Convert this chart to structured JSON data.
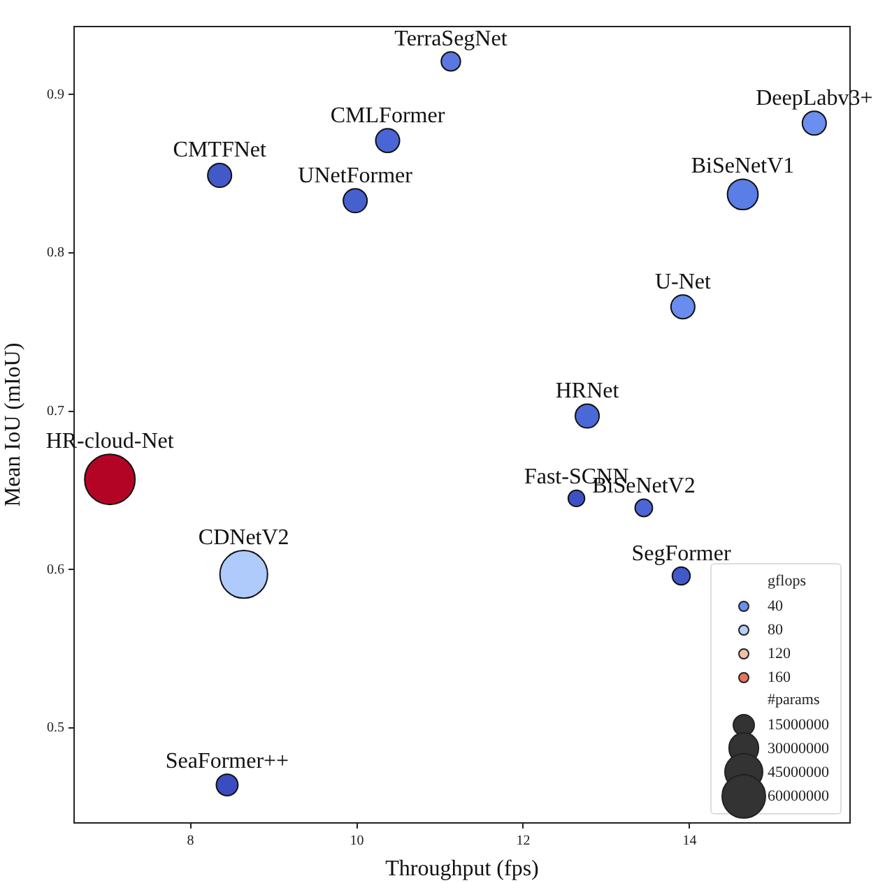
{
  "chart_data": {
    "type": "bubble",
    "xlabel": "Throughput (fps)",
    "ylabel": "Mean IoU (mIoU)",
    "xlim": [
      6.6,
      15.93
    ],
    "ylim": [
      0.44,
      0.943
    ],
    "xticks": [
      8,
      10,
      12,
      14
    ],
    "yticks": [
      0.5,
      0.6,
      0.7,
      0.8,
      0.9
    ],
    "grid": false,
    "legend": "bottom right",
    "legend_title": "gflops",
    "annotations": [
      "#params"
    ],
    "size_legend": [
      15000000,
      30000000,
      45000000,
      60000000
    ],
    "series": [
      {
        "name": "TerraSegNet",
        "color": "#5a78e0",
        "x": [
          11.13
        ],
        "values": [
          0.921
        ],
        "sizes": [
          11000000
        ]
      },
      {
        "name": "DeepLabv3+",
        "color": "#6b8ef0",
        "x": [
          15.5
        ],
        "values": [
          0.882
        ],
        "sizes": [
          17000000
        ]
      },
      {
        "name": "CMLFormer",
        "color": "#4a66d6",
        "x": [
          10.37
        ],
        "values": [
          0.871
        ],
        "sizes": [
          17000000
        ]
      },
      {
        "name": "CMTFNet",
        "color": "#4259c9",
        "x": [
          8.35
        ],
        "values": [
          0.849
        ],
        "sizes": [
          17000000
        ]
      },
      {
        "name": "BiSeNetV1",
        "color": "#5a7de6",
        "x": [
          14.64
        ],
        "values": [
          0.837
        ],
        "sizes": [
          28000000
        ]
      },
      {
        "name": "UNetFormer",
        "color": "#4660d0",
        "x": [
          9.98
        ],
        "values": [
          0.833
        ],
        "sizes": [
          17000000
        ]
      },
      {
        "name": "U-Net",
        "color": "#6a8cef",
        "x": [
          13.92
        ],
        "values": [
          0.766
        ],
        "sizes": [
          17000000
        ]
      },
      {
        "name": "HRNet",
        "color": "#4b68d7",
        "x": [
          12.77
        ],
        "values": [
          0.697
        ],
        "sizes": [
          17000000
        ]
      },
      {
        "name": "HR-cloud-Net",
        "color": "#b40426",
        "x": [
          7.03
        ],
        "values": [
          0.657
        ],
        "sizes": [
          76000000
        ]
      },
      {
        "name": "Fast-SCNN",
        "color": "#3e51c3",
        "x": [
          12.64
        ],
        "values": [
          0.645
        ],
        "sizes": [
          8000000
        ]
      },
      {
        "name": "BiSeNetV2",
        "color": "#4b67d6",
        "x": [
          13.45
        ],
        "values": [
          0.639
        ],
        "sizes": [
          9000000
        ]
      },
      {
        "name": "CDNetV2",
        "color": "#aecbfb",
        "x": [
          8.64
        ],
        "values": [
          0.597
        ],
        "sizes": [
          68000000
        ]
      },
      {
        "name": "SegFormer",
        "color": "#4259ca",
        "x": [
          13.9
        ],
        "values": [
          0.596
        ],
        "sizes": [
          9500000
        ]
      },
      {
        "name": "SeaFormer++",
        "color": "#3b4cc0",
        "x": [
          8.44
        ],
        "values": [
          0.464
        ],
        "sizes": [
          14000000
        ]
      },
      {
        "name": "40",
        "color": "#6b8ef0"
      },
      {
        "name": "80",
        "color": "#b7cff9"
      },
      {
        "name": "120",
        "color": "#f2c0a6"
      },
      {
        "name": "160",
        "color": "#e4765c"
      }
    ]
  }
}
